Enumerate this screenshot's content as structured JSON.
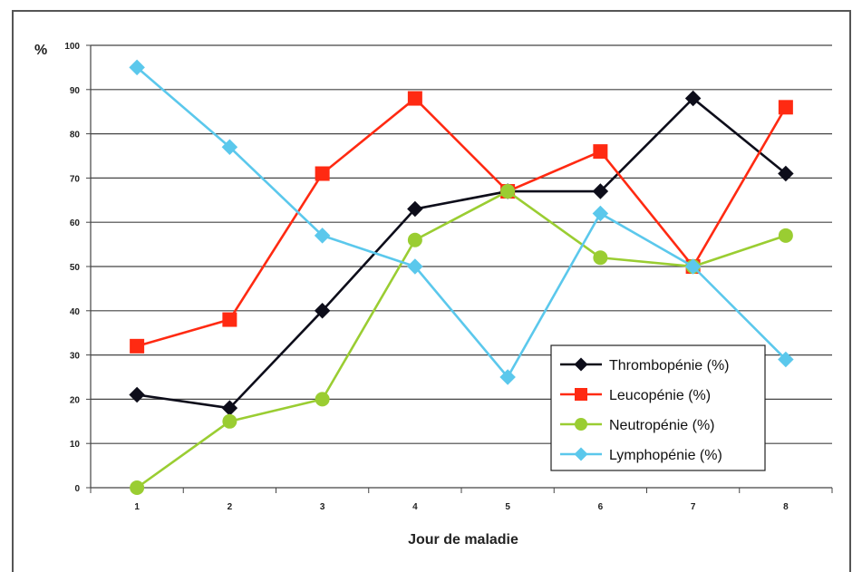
{
  "chart_data": {
    "type": "line",
    "xlabel": "Jour de maladie",
    "ylabel": "%",
    "categories": [
      "1",
      "2",
      "3",
      "4",
      "5",
      "6",
      "7",
      "8"
    ],
    "ylim": [
      0,
      100
    ],
    "yticks": [
      0,
      10,
      20,
      30,
      40,
      50,
      60,
      70,
      80,
      90,
      100
    ],
    "grid": "horizontal",
    "legend_position": "bottom-right",
    "series": [
      {
        "name": "Thrombopénie (%)",
        "color": "#0d0d1a",
        "marker": "diamond",
        "values": [
          21,
          18,
          40,
          63,
          67,
          67,
          88,
          71
        ]
      },
      {
        "name": "Leucopénie (%)",
        "color": "#ff2a12",
        "marker": "square",
        "values": [
          32,
          38,
          71,
          88,
          67,
          76,
          50,
          86
        ]
      },
      {
        "name": "Neutropénie (%)",
        "color": "#9acd32",
        "marker": "circle",
        "values": [
          0,
          15,
          20,
          56,
          67,
          52,
          50,
          57
        ]
      },
      {
        "name": "Lymphopénie (%)",
        "color": "#5bc8ec",
        "marker": "diamond",
        "values": [
          95,
          77,
          57,
          50,
          25,
          62,
          50,
          29
        ]
      }
    ]
  }
}
